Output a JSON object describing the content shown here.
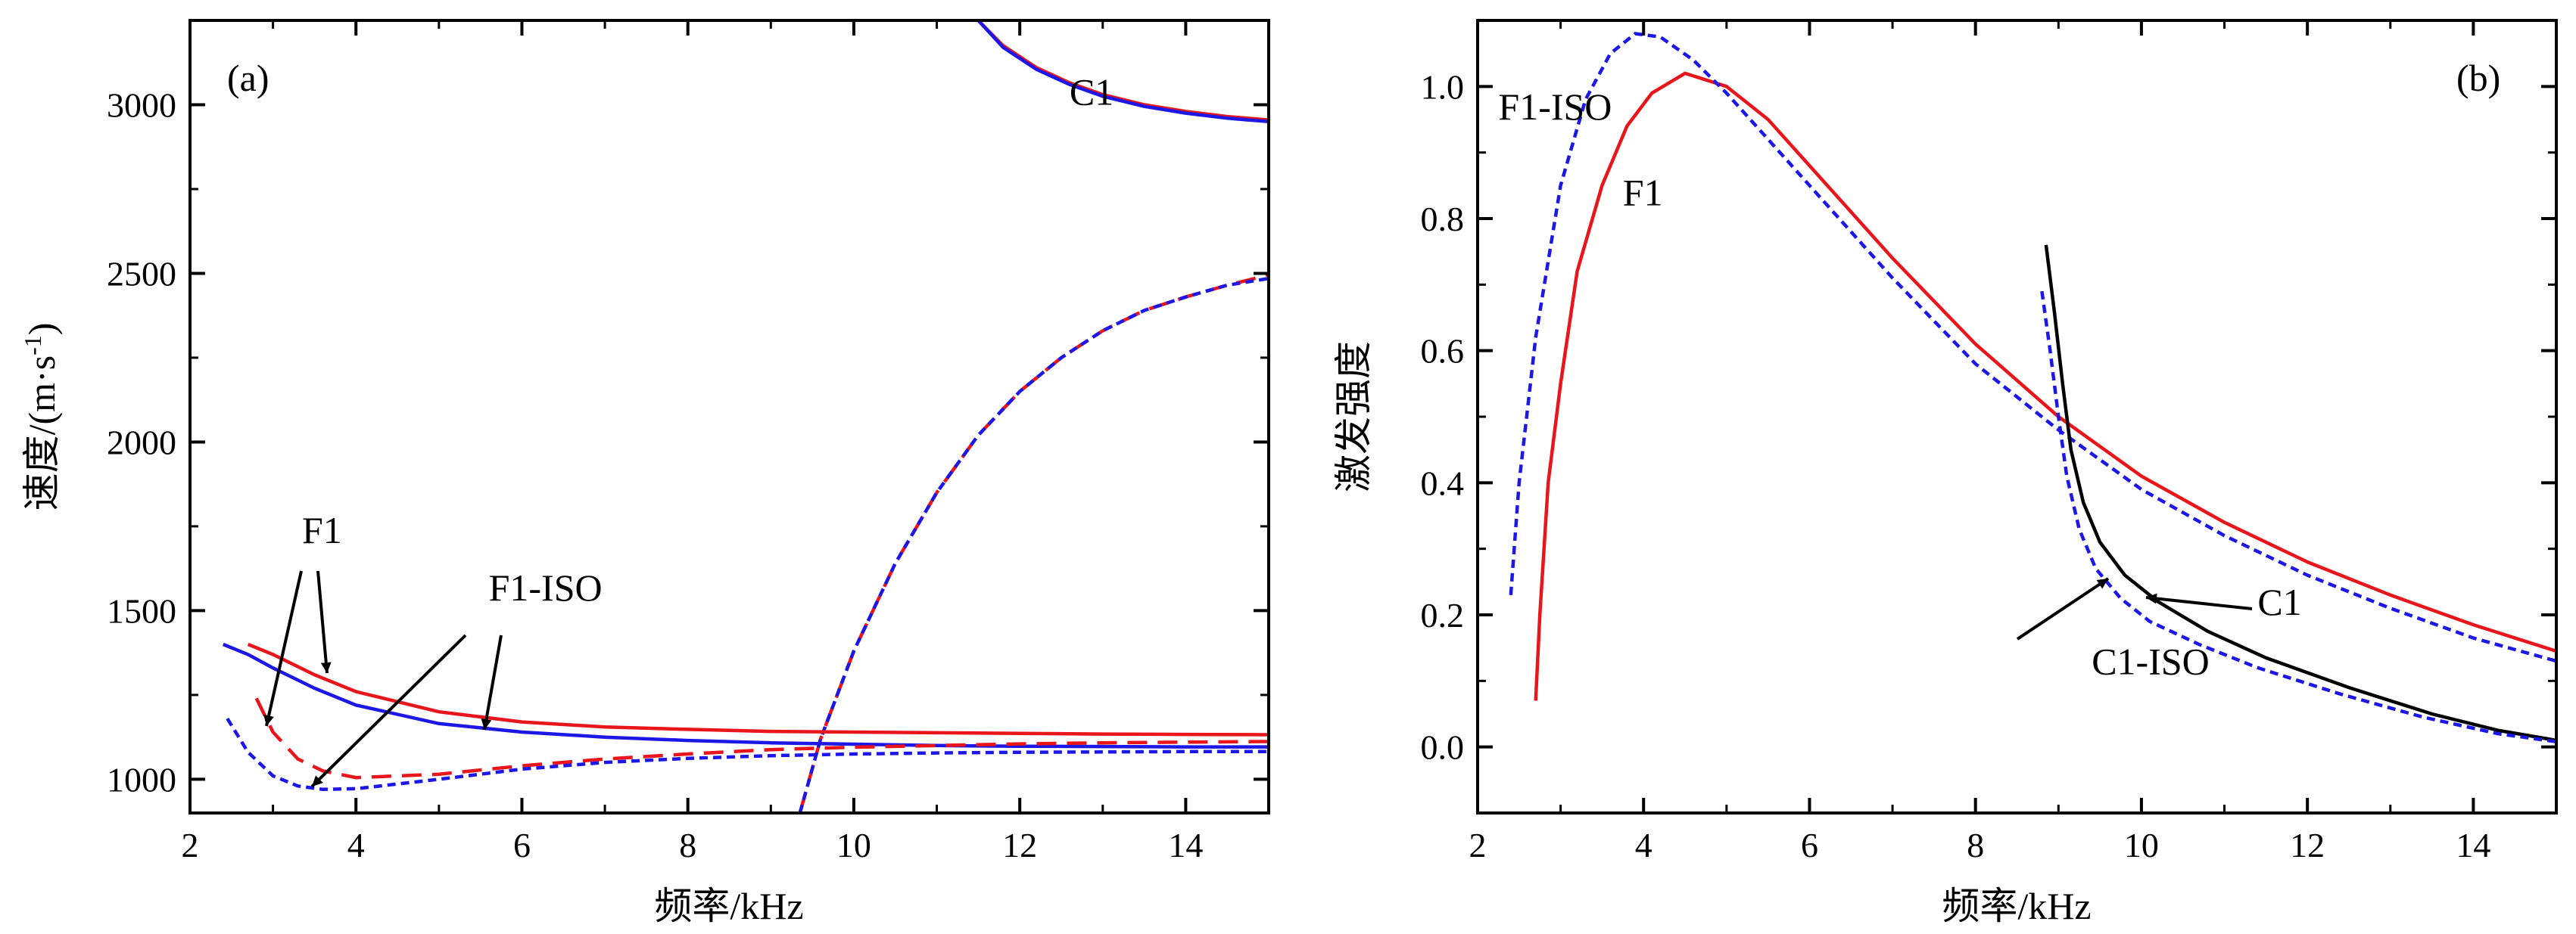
{
  "chart_data": [
    {
      "type": "line",
      "panel_label": "(a)",
      "xlabel": "频率/kHz",
      "ylabel": "速度/(m·s",
      "ylabel_sup": "-1",
      "ylabel_close": ")",
      "xlim": [
        2,
        15
      ],
      "ylim": [
        900,
        3250
      ],
      "xticks": [
        2,
        4,
        6,
        8,
        10,
        12,
        14
      ],
      "yticks": [
        1000,
        1500,
        2000,
        2500,
        3000
      ],
      "series": [
        {
          "name": "C1 red",
          "color": "#e8151b",
          "dash": "solid",
          "x": [
            11.5,
            11.8,
            12.2,
            12.6,
            13.0,
            13.5,
            14.0,
            14.5,
            15.0
          ],
          "y": [
            3250,
            3175,
            3110,
            3065,
            3030,
            3000,
            2980,
            2965,
            2955
          ]
        },
        {
          "name": "C1 blue",
          "color": "#1c17e6",
          "dash": "solid",
          "x": [
            11.5,
            11.8,
            12.2,
            12.6,
            13.0,
            13.5,
            14.0,
            14.5,
            15.0
          ],
          "y": [
            3250,
            3170,
            3105,
            3060,
            3025,
            2995,
            2975,
            2960,
            2950
          ]
        },
        {
          "name": "C1 branch red dashed",
          "color": "#e8151b",
          "dash": "dashed",
          "x": [
            9.35,
            9.6,
            10.0,
            10.5,
            11.0,
            11.5,
            12.0,
            12.5,
            13.0,
            13.5,
            14.0,
            14.5,
            15.0
          ],
          "y": [
            900,
            1120,
            1380,
            1640,
            1850,
            2020,
            2150,
            2250,
            2330,
            2390,
            2430,
            2465,
            2495
          ]
        },
        {
          "name": "C1 branch blue dotted",
          "color": "#1c17e6",
          "dash": "dotted",
          "x": [
            9.35,
            9.6,
            10.0,
            10.5,
            11.0,
            11.5,
            12.0,
            12.5,
            13.0,
            13.5,
            14.0,
            14.5,
            15.0
          ],
          "y": [
            900,
            1120,
            1380,
            1640,
            1850,
            2020,
            2150,
            2250,
            2330,
            2390,
            2430,
            2465,
            2485
          ]
        },
        {
          "name": "F1",
          "color": "#e8151b",
          "dash": "solid",
          "x": [
            2.7,
            3.0,
            3.5,
            4.0,
            5.0,
            6.0,
            7.0,
            8.0,
            9.0,
            10.0,
            11.0,
            12.0,
            13.0,
            14.0,
            15.0
          ],
          "y": [
            1400,
            1370,
            1310,
            1260,
            1200,
            1170,
            1155,
            1148,
            1142,
            1140,
            1138,
            1136,
            1134,
            1133,
            1132
          ]
        },
        {
          "name": "F1-ISO",
          "color": "#1c17e6",
          "dash": "solid",
          "x": [
            2.4,
            2.7,
            3.0,
            3.5,
            4.0,
            5.0,
            6.0,
            7.0,
            8.0,
            9.0,
            10.0,
            11.0,
            12.0,
            13.0,
            14.0,
            15.0
          ],
          "y": [
            1400,
            1370,
            1330,
            1270,
            1220,
            1165,
            1140,
            1125,
            1115,
            1108,
            1104,
            1100,
            1098,
            1097,
            1096,
            1096
          ]
        },
        {
          "name": "F1 lower red dashed",
          "color": "#e8151b",
          "dash": "dashed",
          "x": [
            2.8,
            3.0,
            3.3,
            3.6,
            4.0,
            5.0,
            6.0,
            7.0,
            8.0,
            9.0,
            10.0,
            11.0,
            12.0,
            13.0,
            14.0,
            15.0
          ],
          "y": [
            1240,
            1140,
            1060,
            1025,
            1005,
            1015,
            1040,
            1060,
            1075,
            1088,
            1095,
            1100,
            1105,
            1108,
            1110,
            1112
          ]
        },
        {
          "name": "F1-ISO lower blue dotted",
          "color": "#1c17e6",
          "dash": "dotted",
          "x": [
            2.45,
            2.7,
            3.0,
            3.3,
            3.6,
            4.0,
            5.0,
            6.0,
            7.0,
            8.0,
            9.0,
            10.0,
            11.0,
            12.0,
            13.0,
            14.0,
            15.0
          ],
          "y": [
            1180,
            1080,
            1010,
            980,
            970,
            972,
            1000,
            1030,
            1050,
            1062,
            1070,
            1075,
            1078,
            1080,
            1081,
            1082,
            1082
          ]
        }
      ],
      "annotations": [
        {
          "text": "C1",
          "x": 12.6,
          "y": 3000
        },
        {
          "text": "F1",
          "x": 3.35,
          "y": 1700
        },
        {
          "text": "F1-ISO",
          "x": 5.6,
          "y": 1530
        }
      ]
    },
    {
      "type": "line",
      "panel_label": "(b)",
      "xlabel": "频率/kHz",
      "ylabel": "激发强度",
      "xlim": [
        2,
        15
      ],
      "ylim": [
        -0.1,
        1.1
      ],
      "xticks": [
        2,
        4,
        6,
        8,
        10,
        12,
        14
      ],
      "yticks": [
        0.0,
        0.2,
        0.4,
        0.6,
        0.8,
        1.0
      ],
      "ytick_labels": [
        "0.0",
        "0.2",
        "0.4",
        "0.6",
        "0.8",
        "1.0"
      ],
      "series": [
        {
          "name": "F1",
          "color": "#e8151b",
          "dash": "solid",
          "x": [
            2.7,
            2.75,
            2.85,
            3.0,
            3.2,
            3.5,
            3.8,
            4.1,
            4.5,
            5.0,
            5.5,
            6.0,
            7.0,
            8.0,
            9.0,
            10.0,
            11.0,
            12.0,
            13.0,
            14.0,
            15.0
          ],
          "y": [
            0.07,
            0.2,
            0.4,
            0.55,
            0.72,
            0.85,
            0.94,
            0.99,
            1.02,
            1.0,
            0.95,
            0.88,
            0.74,
            0.61,
            0.5,
            0.41,
            0.34,
            0.28,
            0.23,
            0.185,
            0.145
          ]
        },
        {
          "name": "F1-ISO",
          "color": "#1c17e6",
          "dash": "dotted",
          "x": [
            2.4,
            2.5,
            2.7,
            3.0,
            3.3,
            3.6,
            3.9,
            4.2,
            4.6,
            5.0,
            5.5,
            6.0,
            7.0,
            8.0,
            9.0,
            10.0,
            11.0,
            12.0,
            13.0,
            14.0,
            15.0
          ],
          "y": [
            0.23,
            0.4,
            0.62,
            0.85,
            0.98,
            1.05,
            1.08,
            1.075,
            1.04,
            0.99,
            0.92,
            0.85,
            0.71,
            0.58,
            0.48,
            0.39,
            0.32,
            0.26,
            0.21,
            0.165,
            0.13
          ]
        },
        {
          "name": "C1",
          "color": "#000000",
          "dash": "solid",
          "x": [
            8.85,
            8.95,
            9.05,
            9.15,
            9.3,
            9.5,
            9.8,
            10.2,
            10.8,
            11.5,
            12.5,
            13.5,
            14.3,
            15.0
          ],
          "y": [
            0.76,
            0.66,
            0.55,
            0.45,
            0.37,
            0.31,
            0.26,
            0.22,
            0.175,
            0.135,
            0.09,
            0.05,
            0.025,
            0.01
          ]
        },
        {
          "name": "C1-ISO",
          "color": "#1c17e6",
          "dash": "dotted",
          "x": [
            8.8,
            8.9,
            9.0,
            9.1,
            9.25,
            9.45,
            9.75,
            10.1,
            10.7,
            11.4,
            12.4,
            13.4,
            14.3,
            15.0
          ],
          "y": [
            0.69,
            0.6,
            0.5,
            0.41,
            0.33,
            0.27,
            0.225,
            0.19,
            0.155,
            0.12,
            0.08,
            0.045,
            0.02,
            0.008
          ]
        }
      ],
      "annotations": [
        {
          "text": "F1-ISO",
          "x": 2.25,
          "y": 0.95
        },
        {
          "text": "F1",
          "x": 3.75,
          "y": 0.82
        },
        {
          "text": "C1",
          "x": 11.4,
          "y": 0.2
        },
        {
          "text": "C1-ISO",
          "x": 9.4,
          "y": 0.11
        }
      ]
    }
  ]
}
